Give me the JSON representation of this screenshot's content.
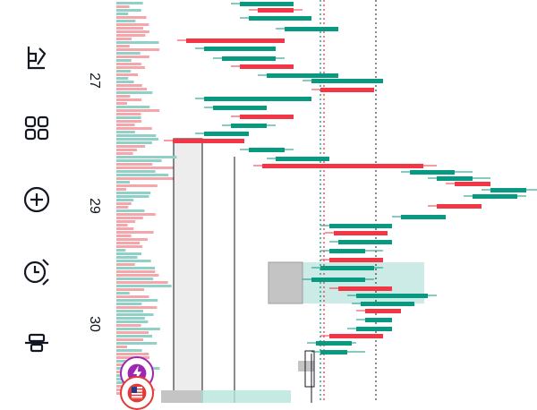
{
  "toolbar": {
    "items": [
      {
        "icon": "pattern-tool-icon"
      },
      {
        "icon": "layouts-grid-icon"
      },
      {
        "icon": "add-circle-icon"
      },
      {
        "icon": "alert-clock-icon"
      },
      {
        "icon": "align-tool-icon"
      }
    ]
  },
  "axis": {
    "ticks": [
      "27",
      "29",
      "30"
    ]
  },
  "colors": {
    "up": "#089981",
    "down": "#f23645",
    "up_volume": "#8fd1c7",
    "down_volume": "#f5a6ab",
    "zone_gray": "#cfcfcf",
    "zone_teal": "#b7e3dc",
    "event_badge": "#9c27b0",
    "flag_badge": "#e53935"
  }
}
